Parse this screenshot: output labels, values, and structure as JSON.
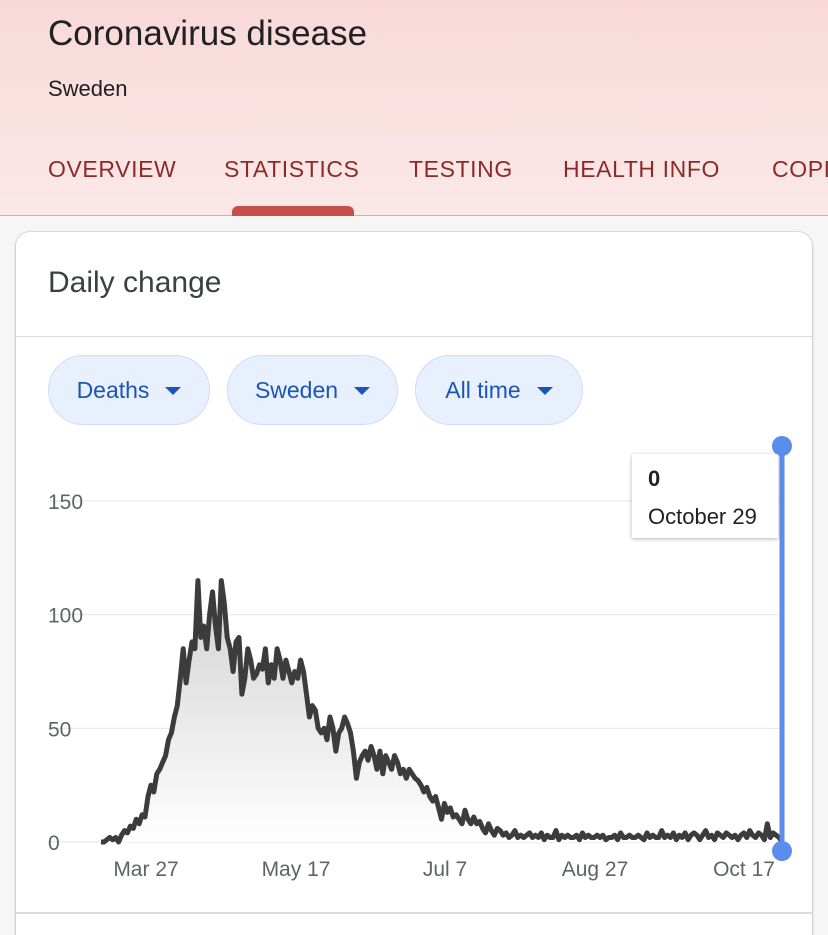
{
  "header": {
    "title": "Coronavirus disease",
    "subtitle": "Sweden"
  },
  "tabs": [
    {
      "label": "OVERVIEW"
    },
    {
      "label": "STATISTICS"
    },
    {
      "label": "TESTING"
    },
    {
      "label": "HEALTH INFO"
    },
    {
      "label": "COPING"
    }
  ],
  "active_tab": "STATISTICS",
  "card": {
    "title": "Daily change",
    "filters": [
      {
        "label": "Deaths"
      },
      {
        "label": "Sweden"
      },
      {
        "label": "All time"
      }
    ]
  },
  "tooltip": {
    "value": "0",
    "date": "October 29"
  },
  "colors": {
    "header_bg": "#f8d9d8",
    "tab_text": "#8a2b28",
    "tab_indicator": "#c5504b",
    "chip_bg": "#e8f0fe",
    "chip_text": "#1a56b5",
    "line": "#3c3c3c",
    "cursor": "#5b8def"
  },
  "chart_data": {
    "type": "area",
    "title": "",
    "xlabel": "",
    "ylabel": "",
    "ylim": [
      0,
      150
    ],
    "yticks": [
      0,
      50,
      100,
      150
    ],
    "x_tick_labels": [
      "Mar 27",
      "May 17",
      "Jul 7",
      "Aug 27",
      "Oct 17"
    ],
    "x_start": "2020-03-11",
    "x_end": "2020-10-29",
    "grid": true,
    "series": [
      {
        "values": [
          0,
          0,
          1,
          2,
          1,
          2,
          0,
          3,
          5,
          4,
          7,
          6,
          10,
          8,
          12,
          11,
          20,
          25,
          22,
          30,
          32,
          35,
          38,
          45,
          48,
          55,
          60,
          72,
          85,
          70,
          80,
          88,
          85,
          115,
          90,
          95,
          85,
          100,
          110,
          95,
          85,
          115,
          105,
          90,
          85,
          75,
          88,
          90,
          65,
          72,
          85,
          80,
          72,
          74,
          78,
          76,
          85,
          70,
          78,
          72,
          85,
          80,
          72,
          80,
          75,
          70,
          75,
          72,
          80,
          75,
          65,
          55,
          60,
          58,
          50,
          48,
          50,
          45,
          55,
          50,
          40,
          48,
          50,
          55,
          52,
          48,
          40,
          28,
          35,
          38,
          40,
          36,
          42,
          38,
          32,
          40,
          30,
          38,
          35,
          32,
          38,
          35,
          30,
          32,
          28,
          32,
          30,
          28,
          27,
          25,
          22,
          24,
          20,
          18,
          20,
          15,
          10,
          17,
          13,
          15,
          11,
          12,
          10,
          8,
          14,
          10,
          8,
          11,
          8,
          9,
          6,
          4,
          8,
          5,
          3,
          6,
          5,
          3,
          4,
          2,
          3,
          5,
          2,
          3,
          2,
          3,
          4,
          2,
          3,
          2,
          4,
          1,
          3,
          2,
          2,
          5,
          1,
          3,
          2,
          3,
          2,
          2,
          3,
          1,
          4,
          2,
          3,
          2,
          2,
          3,
          2,
          3,
          1,
          2,
          2,
          3,
          1,
          4,
          2,
          2,
          3,
          2,
          2,
          3,
          2,
          1,
          4,
          2,
          3,
          2,
          2,
          5,
          2,
          3,
          2,
          4,
          1,
          3,
          2,
          4,
          1,
          3,
          4,
          3,
          1,
          3,
          5,
          2,
          3,
          1,
          4,
          3,
          2,
          4,
          3,
          2,
          3,
          1,
          3,
          4,
          2,
          5,
          3,
          2,
          4,
          3,
          1,
          8,
          2,
          4,
          3,
          2,
          0
        ]
      }
    ]
  }
}
